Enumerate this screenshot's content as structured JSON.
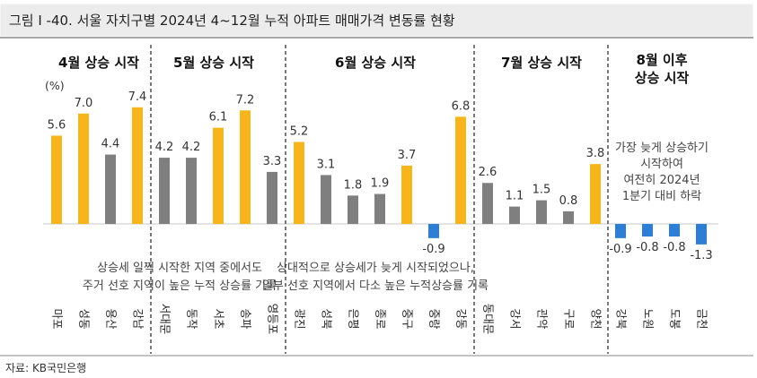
{
  "figure_title": "그림 I -40. 서울 자치구별 2024년 4~12월 누적 아파트 매매가격 변동률 현황",
  "source": "자료: KB국민은행",
  "colors": {
    "header_bg": "#ececec",
    "header_border": "#888888",
    "highlight": "#f7b51c",
    "normal": "#7f7f7f",
    "negative": "#2e7ed6"
  },
  "chart_data": {
    "type": "bar",
    "unit_label": "(%)",
    "groups": [
      {
        "title": "4월 상승 시작",
        "categories": [
          "마포",
          "성동",
          "용산",
          "강남"
        ],
        "values": [
          5.6,
          7.0,
          4.4,
          7.4
        ],
        "highlight": [
          true,
          true,
          false,
          true
        ],
        "value_labels": [
          "5.6",
          "7.0",
          "4.4",
          "7.4"
        ]
      },
      {
        "title": "5월 상승 시작",
        "categories": [
          "서대문",
          "동작",
          "서초",
          "송파",
          "영등포"
        ],
        "values": [
          4.2,
          4.2,
          6.1,
          7.2,
          3.3
        ],
        "highlight": [
          false,
          false,
          true,
          true,
          false
        ],
        "value_labels": [
          "4.2",
          "4.2",
          "6.1",
          "7.2",
          "3.3"
        ]
      },
      {
        "title": "6월 상승 시작",
        "categories": [
          "광진",
          "성북",
          "은평",
          "종로",
          "중구",
          "중랑",
          "강동"
        ],
        "values": [
          5.2,
          3.1,
          1.8,
          1.9,
          3.7,
          -0.9,
          6.8
        ],
        "highlight": [
          true,
          false,
          false,
          false,
          true,
          false,
          true
        ],
        "value_labels": [
          "5.2",
          "3.1",
          "1.8",
          "1.9",
          "3.7",
          "-0.9",
          "6.8"
        ]
      },
      {
        "title": "7월 상승 시작",
        "categories": [
          "동대문",
          "강서",
          "관악",
          "구로",
          "양천"
        ],
        "values": [
          2.6,
          1.1,
          1.5,
          0.8,
          3.8
        ],
        "highlight": [
          false,
          false,
          false,
          false,
          true
        ],
        "value_labels": [
          "2.6",
          "1.1",
          "1.5",
          "0.8",
          "3.8"
        ]
      },
      {
        "title": "8월 이후\n상승 시작",
        "categories": [
          "강북",
          "노원",
          "도봉",
          "금천"
        ],
        "values": [
          -0.9,
          -0.8,
          -0.8,
          -1.3
        ],
        "highlight": [
          false,
          false,
          false,
          false
        ],
        "value_labels": [
          "-0.9",
          "-0.8",
          "-0.8",
          "-1.3"
        ]
      }
    ],
    "annotations": [
      "상승세 일찍 시작한 지역 중에서도\n주거 선호 지역이 높은 누적 상승률 기록",
      "상대적으로 상승세가 늦게 시작되었으나,\n일부 선호 지역에서 다소 높은 누적상승률 기록",
      "가장 늦게 상승하기\n시작하여\n여전히 2024년\n1분기 대비 하락"
    ]
  }
}
